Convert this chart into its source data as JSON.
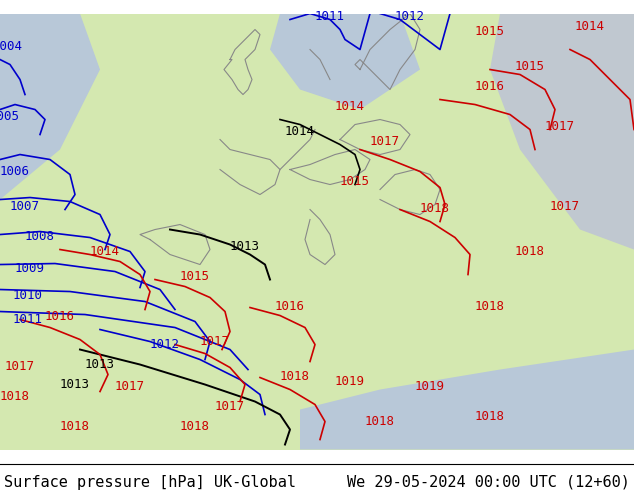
{
  "title_left": "Surface pressure [hPa] UK-Global",
  "title_right": "We 29-05-2024 00:00 UTC (12+60)",
  "title_fontsize": 11,
  "bg_color": "#d4e8b0",
  "land_color": "#d4e8b0",
  "sea_color": "#c8d8e8",
  "border_color": "#888888",
  "isobar_blue_color": "#0000cc",
  "isobar_red_color": "#cc0000",
  "isobar_black_color": "#000000",
  "label_fontsize": 9,
  "bottom_bar_color": "#ffffff",
  "bottom_bar_height": 0.055
}
